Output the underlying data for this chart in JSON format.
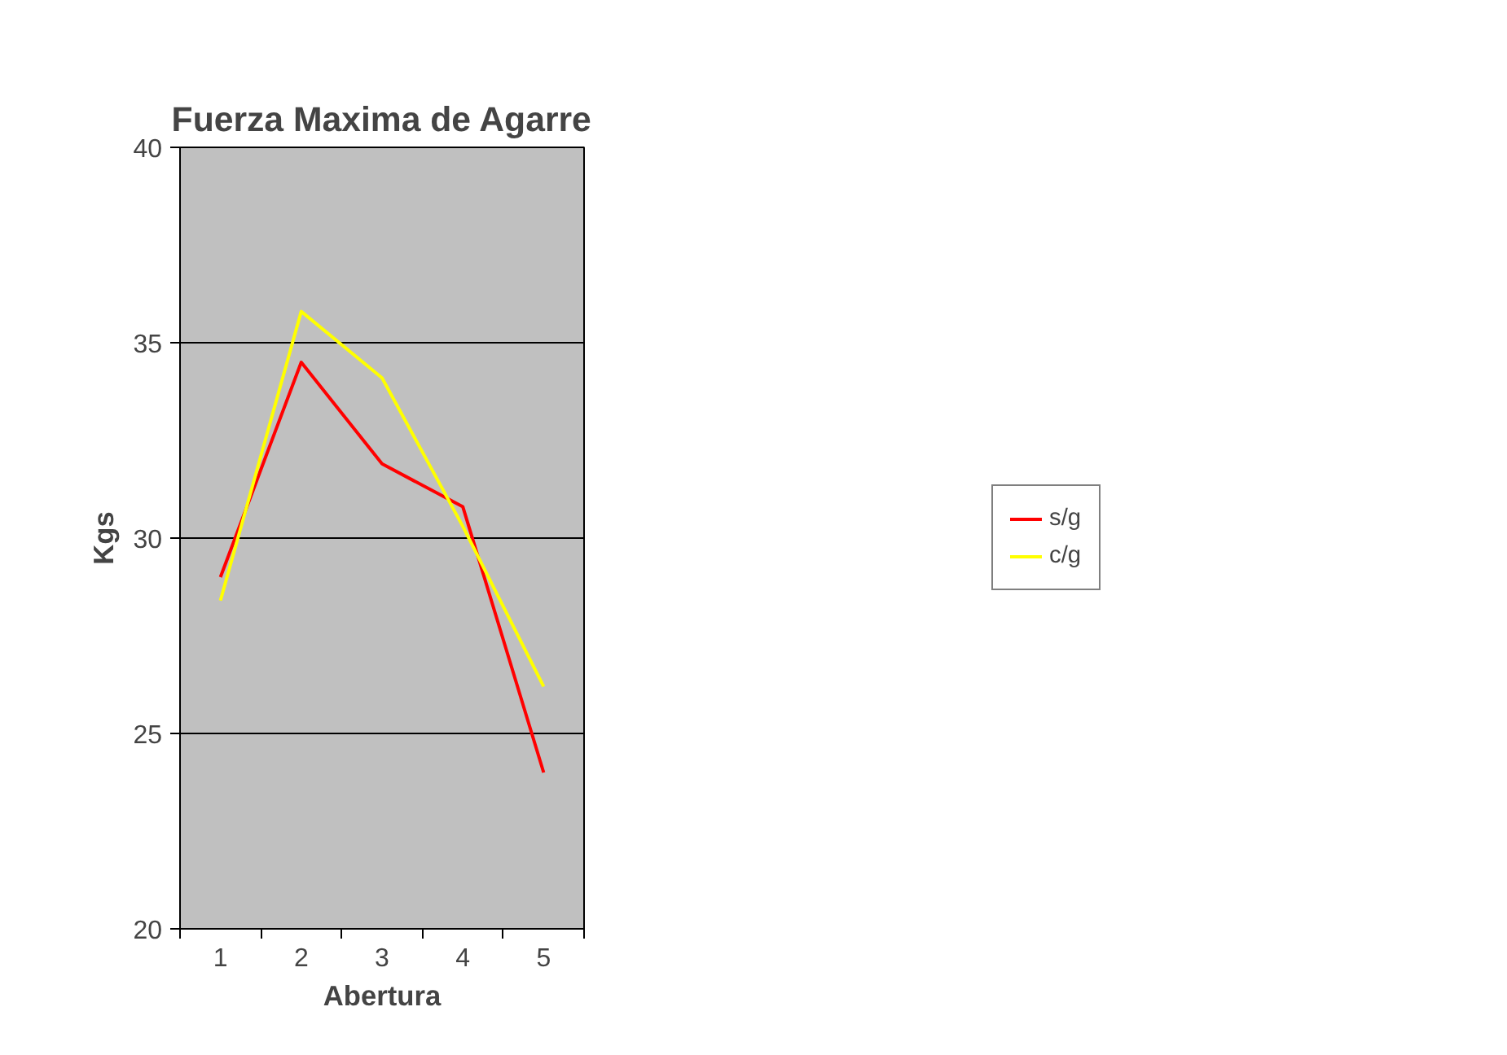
{
  "chart_data": {
    "type": "line",
    "title": "Fuerza Maxima de Agarre",
    "xlabel": "Abertura",
    "ylabel": "Kgs",
    "categories": [
      "1",
      "2",
      "3",
      "4",
      "5"
    ],
    "series": [
      {
        "name": "s/g",
        "color": "#ff0000",
        "values": [
          29.0,
          34.5,
          31.9,
          30.8,
          24.0
        ]
      },
      {
        "name": "c/g",
        "color": "#ffff00",
        "values": [
          28.4,
          35.8,
          34.1,
          30.3,
          26.2
        ]
      }
    ],
    "ylim": [
      20,
      40
    ],
    "yticks": [
      20,
      25,
      30,
      35,
      40
    ],
    "grid": "y",
    "legend": "right",
    "marker": "none",
    "line_style": "solid"
  }
}
